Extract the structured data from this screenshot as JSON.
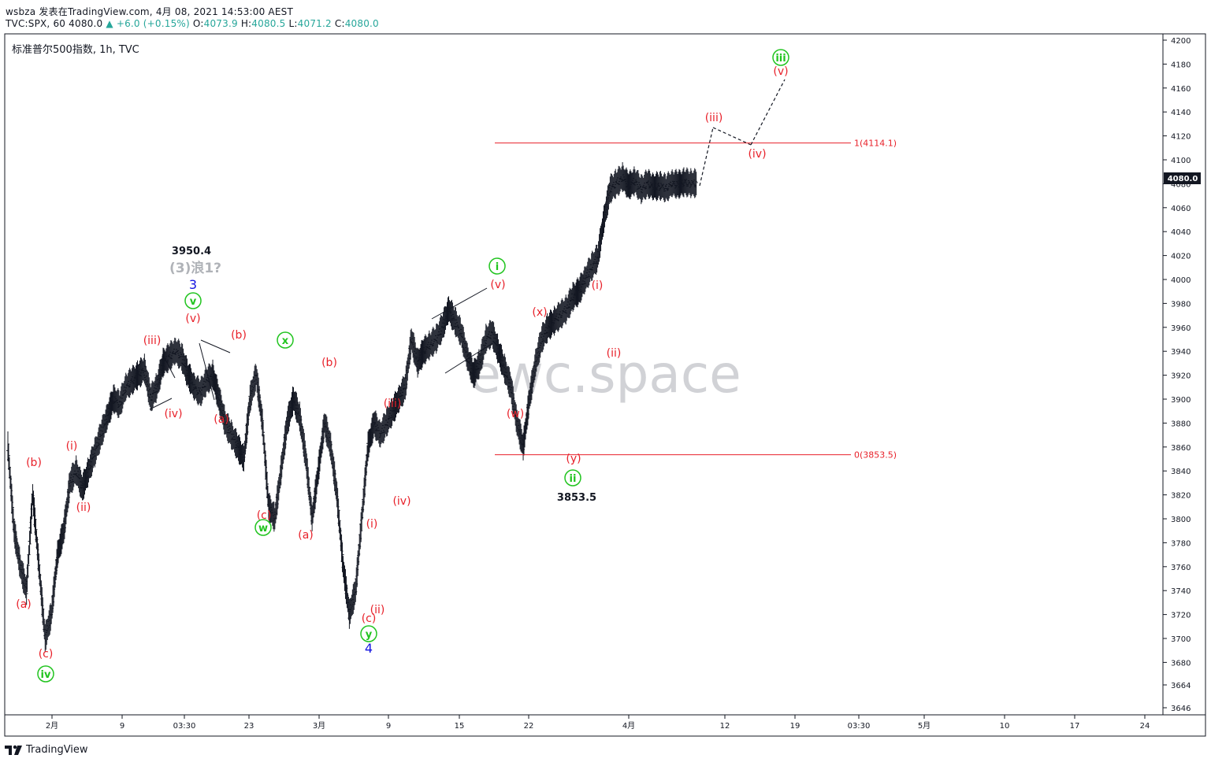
{
  "header": {
    "publisher_line": "wsbza 发表在TradingView.com, 4月 08, 2021 14:53:00 AEST",
    "symbol_prefix": "TVC:SPX, 60 4080.0",
    "change": "+6.0 (+0.15%)",
    "o_label": "O:",
    "o_value": "4073.9",
    "h_label": "H:",
    "h_value": "4080.5",
    "l_label": "L:",
    "l_value": "4071.2",
    "c_label": "C:",
    "c_value": "4080.0"
  },
  "chart_title": "标准普尔500指数, 1h, TVC",
  "watermark": "ewc.space",
  "brand": "TradingView",
  "colors": {
    "wave_red": "#e8212a",
    "wave_green": "#21c41f",
    "wave_blue": "#1212e0",
    "annot_gray": "#b0b3b8",
    "price_tag_bg": "#131722",
    "fib_line": "#e8212a"
  },
  "chart_data": {
    "type": "ohlc",
    "y_ticks": [
      4200,
      4180,
      4160,
      4140,
      4120,
      4100,
      4080,
      4060,
      4040,
      4020,
      4000,
      3980,
      3960,
      3940,
      3920,
      3900,
      3880,
      3860,
      3840,
      3820,
      3800,
      3780,
      3760,
      3740,
      3720,
      3700,
      3680,
      3664,
      3646
    ],
    "x_ticks": [
      "2月",
      "9",
      "03:30",
      "23",
      "3月",
      "9",
      "15",
      "22",
      "4月",
      "12",
      "19",
      "03:30",
      "5月",
      "10",
      "17",
      "24"
    ],
    "ylim": [
      3640,
      4205
    ],
    "last_price": "4080.0",
    "fib_levels": [
      {
        "label": "1(4114.1)",
        "value": 4114.1
      },
      {
        "label": "0(3853.5)",
        "value": 3853.5
      }
    ],
    "price_annotations": [
      {
        "text": "3950.4",
        "value": 3950.4
      },
      {
        "text": "3853.5",
        "value": 3853.5
      }
    ],
    "gray_annotation": "(3)浪1?",
    "wave_labels_red": [
      "(a)",
      "(b)",
      "(c)",
      "(i)",
      "(ii)",
      "(iii)",
      "(iv)",
      "(v)",
      "(b)",
      "(a)",
      "(c)",
      "(b)",
      "(a)",
      "(iii)",
      "(iv)",
      "(i)",
      "(ii)",
      "(c)",
      "(v)",
      "(x)",
      "(w)",
      "(y)",
      "(i)",
      "(ii)",
      "(iii)",
      "(iv)",
      "(v)"
    ],
    "wave_labels_green": [
      "iv",
      "v",
      "w",
      "x",
      "y",
      "i",
      "ii",
      "iii"
    ],
    "wave_labels_blue": [
      "3",
      "4"
    ],
    "series": [
      {
        "name": "SPX 1h",
        "x": [
          0,
          8,
          16,
          24,
          32,
          40,
          48,
          56,
          64,
          72,
          80,
          88,
          96,
          104,
          112,
          120,
          128,
          136,
          144,
          152,
          160,
          168,
          176,
          184,
          192,
          200,
          208,
          216,
          224,
          232,
          240,
          248,
          256,
          264,
          272,
          280,
          288,
          296,
          304,
          312,
          320,
          328,
          336,
          344,
          352,
          360,
          368,
          376,
          384,
          392,
          400,
          408,
          416,
          424,
          432,
          440,
          448,
          456,
          464,
          472,
          480,
          488,
          496,
          504,
          512,
          520,
          528,
          536,
          544,
          552,
          560,
          568,
          576,
          584,
          592,
          600,
          608,
          616,
          624,
          632,
          640,
          648,
          656,
          664,
          672,
          680,
          688,
          696,
          704,
          712,
          720,
          728,
          736,
          744,
          752,
          760,
          768,
          776,
          784,
          792,
          800,
          808,
          816,
          824,
          832,
          840,
          848,
          856,
          864,
          872,
          880
        ],
        "y": [
          3860,
          3790,
          3760,
          3740,
          3820,
          3760,
          3700,
          3720,
          3770,
          3790,
          3830,
          3840,
          3825,
          3840,
          3855,
          3870,
          3885,
          3900,
          3895,
          3910,
          3915,
          3920,
          3925,
          3900,
          3910,
          3930,
          3935,
          3940,
          3935,
          3920,
          3910,
          3905,
          3915,
          3920,
          3900,
          3880,
          3870,
          3860,
          3850,
          3900,
          3920,
          3880,
          3810,
          3800,
          3840,
          3880,
          3900,
          3885,
          3850,
          3800,
          3840,
          3880,
          3860,
          3820,
          3760,
          3720,
          3740,
          3800,
          3860,
          3880,
          3870,
          3880,
          3890,
          3900,
          3910,
          3950,
          3930,
          3940,
          3945,
          3950,
          3960,
          3975,
          3965,
          3955,
          3935,
          3920,
          3930,
          3950,
          3955,
          3940,
          3925,
          3910,
          3880,
          3860,
          3900,
          3930,
          3950,
          3960,
          3965,
          3970,
          3975,
          3985,
          3990,
          4000,
          4010,
          4018,
          4050,
          4075,
          4080,
          4085,
          4078,
          4082,
          4075,
          4080,
          4077,
          4078,
          4076,
          4080,
          4079,
          4081,
          4080
        ]
      }
    ]
  }
}
